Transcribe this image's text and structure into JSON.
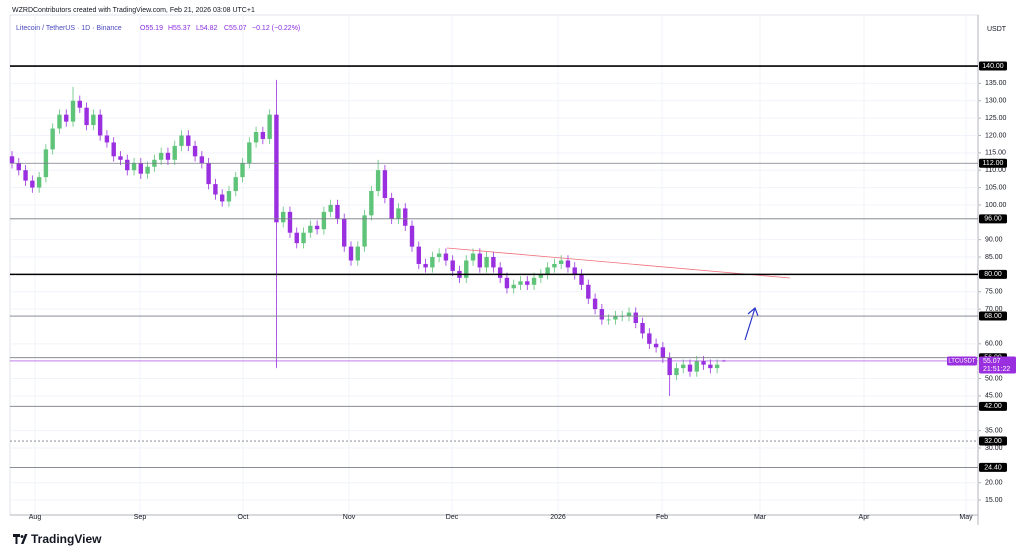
{
  "chart_data": {
    "type": "candlestick",
    "header": "WZRDContributors created with TradingView.com, Feb 21, 2026 03:08 UTC+1",
    "legend": {
      "symbol": "Litecoin / TetherUS · 1D · Binance",
      "open": "O55.19",
      "high": "H55.37",
      "low": "L54.82",
      "close": "C55.07",
      "change": "−0.12 (−0.22%)"
    },
    "y_axis_label": "USDT",
    "brand": "TradingView",
    "up_color": "#5fc47a",
    "down_color": "#9a2fe0",
    "ylim": [
      10.7,
      154.7
    ],
    "yticks": [
      {
        "value": 15,
        "label": "15.00"
      },
      {
        "value": 20,
        "label": "20.00"
      },
      {
        "value": 30,
        "label": "30.00"
      },
      {
        "value": 35,
        "label": "35.00"
      },
      {
        "value": 45,
        "label": "45.00"
      },
      {
        "value": 50,
        "label": "50.00"
      },
      {
        "value": 60,
        "label": "60.00"
      },
      {
        "value": 70,
        "label": "70.00"
      },
      {
        "value": 75,
        "label": "75.00"
      },
      {
        "value": 85,
        "label": "85.00"
      },
      {
        "value": 90,
        "label": "90.00"
      },
      {
        "value": 100,
        "label": "100.00"
      },
      {
        "value": 105,
        "label": "105.00"
      },
      {
        "value": 110,
        "label": "110.00"
      },
      {
        "value": 115,
        "label": "115.00"
      },
      {
        "value": 120,
        "label": "120.00"
      },
      {
        "value": 125,
        "label": "125.00"
      },
      {
        "value": 130,
        "label": "130.00"
      },
      {
        "value": 135,
        "label": "135.00"
      }
    ],
    "grid": true,
    "x_labels": [
      "Aug",
      "Sep",
      "Oct",
      "Nov",
      "Dec",
      "2026",
      "Feb",
      "Mar",
      "Apr",
      "May"
    ],
    "levels": [
      {
        "value": 140,
        "label": "140.00",
        "style": "bold"
      },
      {
        "value": 112,
        "label": "112.00",
        "style": "thin"
      },
      {
        "value": 96,
        "label": "96.00",
        "style": "thin"
      },
      {
        "value": 80,
        "label": "80.00",
        "style": "bold"
      },
      {
        "value": 68,
        "label": "68.00",
        "style": "thin"
      },
      {
        "value": 56,
        "label": "56.00",
        "style": "thin"
      },
      {
        "value": 42,
        "label": "42.00",
        "style": "thin"
      },
      {
        "value": 32,
        "label": "32.00",
        "style": "dotted"
      },
      {
        "value": 24.4,
        "label": "24.40",
        "style": "thin"
      }
    ],
    "last": {
      "value": 55.07,
      "label": "55.07",
      "symbol": "LTCUSDT",
      "countdown": "21:51:22"
    },
    "candles": {
      "open": [
        114,
        112,
        110,
        107,
        105,
        108,
        116,
        122,
        126,
        124,
        130,
        128,
        123,
        126,
        120,
        118,
        114,
        113,
        110,
        112,
        109,
        111,
        113,
        115,
        113,
        117,
        120,
        117,
        114,
        112,
        106,
        103,
        101,
        104,
        108,
        112,
        118,
        121,
        119,
        126,
        95,
        98,
        92,
        89,
        92,
        94,
        93,
        98,
        100,
        96,
        88,
        84,
        88,
        97,
        104,
        110,
        102,
        96,
        99,
        94,
        88,
        83,
        82,
        85,
        86,
        84,
        81,
        79,
        84,
        86,
        82,
        85,
        82,
        79,
        76,
        77,
        78,
        77,
        79,
        80,
        82,
        83,
        84,
        82,
        80,
        77,
        73,
        70,
        67,
        67,
        68,
        68,
        69,
        66,
        63,
        60,
        59,
        56,
        51,
        53,
        54,
        52,
        55,
        54,
        53,
        55.19
      ],
      "high": [
        115.5,
        113.5,
        111.5,
        108.5,
        109.5,
        117.5,
        123.5,
        127.5,
        127.5,
        134,
        131.5,
        129.5,
        127.5,
        127.5,
        121.5,
        119.5,
        115.5,
        114.5,
        113.5,
        113.5,
        112.5,
        114.5,
        116.5,
        116.5,
        118.5,
        121.5,
        121.5,
        118.5,
        115.5,
        113.5,
        107.5,
        104.5,
        105.5,
        109.5,
        113.5,
        119.5,
        122.5,
        122.5,
        127.5,
        136,
        99.5,
        99.5,
        93.5,
        93.5,
        95.5,
        95.5,
        99.5,
        101.5,
        101.5,
        97.5,
        89.5,
        89.5,
        98.5,
        105.5,
        113,
        111.5,
        103.5,
        100.5,
        100.5,
        95.5,
        89.5,
        84.5,
        86.5,
        87.5,
        87.5,
        85.5,
        82.5,
        85.5,
        87.5,
        87.5,
        86.5,
        86.5,
        83.5,
        80.5,
        78.5,
        79.5,
        79.5,
        80.5,
        81.5,
        83.5,
        84.5,
        85.5,
        85.5,
        83.5,
        81.5,
        78.5,
        74.5,
        71.5,
        68.5,
        69.5,
        69.5,
        70.5,
        70.5,
        67.5,
        64.5,
        61.5,
        60.5,
        57.5,
        54.5,
        55.5,
        55.5,
        56.5,
        56.5,
        55.5,
        55.5,
        55.37
      ],
      "low": [
        110.5,
        108.5,
        105.5,
        103.5,
        103.5,
        106.5,
        114.5,
        120.5,
        122.5,
        122.5,
        126.5,
        121.5,
        121.5,
        118.5,
        116.5,
        112.5,
        111.5,
        108.5,
        108.5,
        107.5,
        107.5,
        109.5,
        111.5,
        111.5,
        111.5,
        115.5,
        115.5,
        112.5,
        110.5,
        104.5,
        101.5,
        99.5,
        99.5,
        102.5,
        106.5,
        110.5,
        116.5,
        117.5,
        117.5,
        53,
        93.5,
        90.5,
        87.5,
        87.5,
        90.5,
        91.5,
        91.5,
        96.5,
        94.5,
        86.5,
        82.5,
        82.5,
        86.5,
        95.5,
        102.5,
        100.5,
        94.5,
        94.5,
        92.5,
        86.5,
        81.5,
        80.5,
        80.5,
        83.5,
        82.5,
        79.5,
        77.5,
        77.5,
        82.5,
        80.5,
        80.5,
        80.5,
        77.5,
        74.5,
        74.5,
        75.5,
        75.5,
        75.5,
        77.5,
        78.5,
        80.5,
        81.5,
        80.5,
        78.5,
        75.5,
        71.5,
        68.5,
        65.5,
        65.5,
        65.5,
        66.5,
        66.5,
        64.5,
        61.5,
        58.5,
        57.5,
        54.5,
        45,
        49.5,
        51.5,
        50.5,
        50.5,
        52.5,
        51.5,
        51.5,
        54.82
      ],
      "close": [
        112,
        110,
        107,
        105,
        108,
        116,
        122,
        126,
        124,
        130,
        128,
        123,
        126,
        120,
        118,
        114,
        113,
        110,
        112,
        109,
        111,
        113,
        115,
        113,
        117,
        120,
        117,
        114,
        112,
        106,
        103,
        101,
        104,
        108,
        112,
        118,
        121,
        119,
        126,
        95,
        98,
        92,
        89,
        92,
        94,
        93,
        98,
        100,
        96,
        88,
        84,
        88,
        97,
        104,
        110,
        102,
        96,
        99,
        94,
        88,
        83,
        82,
        85,
        86,
        84,
        81,
        79,
        84,
        86,
        82,
        85,
        82,
        79,
        76,
        77,
        78,
        77,
        79,
        80,
        82,
        83,
        84,
        82,
        80,
        77,
        73,
        70,
        67,
        67,
        68,
        68,
        69,
        66,
        63,
        60,
        59,
        56,
        51,
        53,
        54,
        52,
        55,
        54,
        53,
        54,
        55.07
      ]
    }
  }
}
